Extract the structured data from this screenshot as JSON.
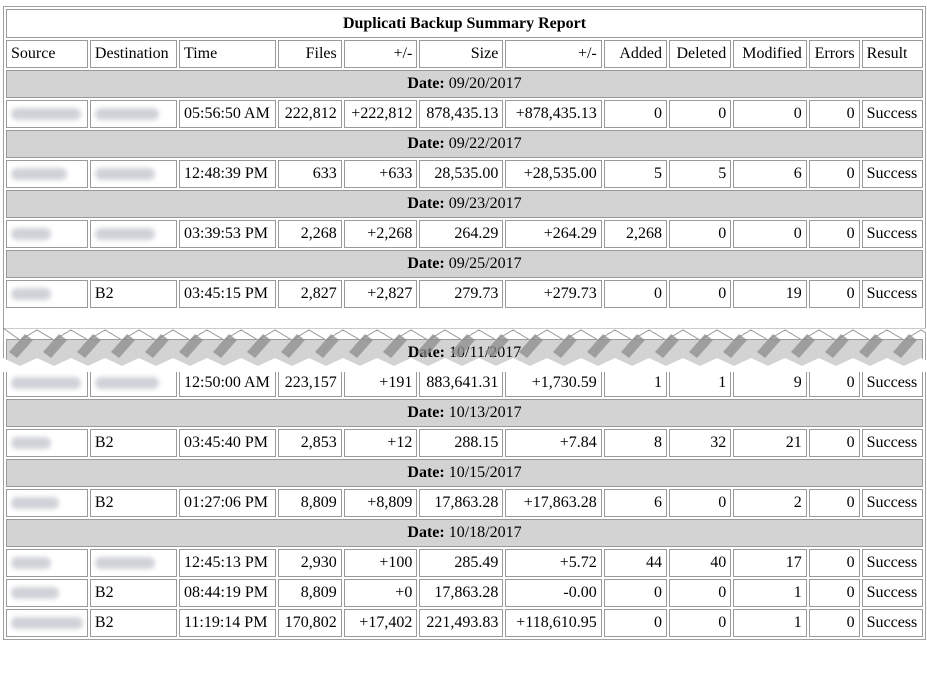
{
  "report": {
    "title": "Duplicati Backup Summary Report",
    "date_label": "Date:",
    "columns": [
      "Source",
      "Destination",
      "Time",
      "Files",
      "+/-",
      "Size",
      "+/-",
      "Added",
      "Deleted",
      "Modified",
      "Errors",
      "Result"
    ],
    "groups": [
      {
        "date": "09/20/2017",
        "rows": [
          {
            "source": "",
            "destination": "",
            "time": "05:56:50 AM",
            "files": "222,812",
            "files_delta": "+222,812",
            "size": "878,435.13",
            "size_delta": "+878,435.13",
            "added": "0",
            "deleted": "0",
            "modified": "0",
            "errors": "0",
            "result": "Success"
          }
        ]
      },
      {
        "date": "09/22/2017",
        "rows": [
          {
            "source": "",
            "destination": "",
            "time": "12:48:39 PM",
            "files": "633",
            "files_delta": "+633",
            "size": "28,535.00",
            "size_delta": "+28,535.00",
            "added": "5",
            "deleted": "5",
            "modified": "6",
            "errors": "0",
            "result": "Success"
          }
        ]
      },
      {
        "date": "09/23/2017",
        "rows": [
          {
            "source": "",
            "destination": "",
            "time": "03:39:53 PM",
            "files": "2,268",
            "files_delta": "+2,268",
            "size": "264.29",
            "size_delta": "+264.29",
            "added": "2,268",
            "deleted": "0",
            "modified": "0",
            "errors": "0",
            "result": "Success"
          }
        ]
      },
      {
        "date": "09/25/2017",
        "rows": [
          {
            "source": "",
            "destination": "B2",
            "time": "03:45:15 PM",
            "files": "2,827",
            "files_delta": "+2,827",
            "size": "279.73",
            "size_delta": "+279.73",
            "added": "0",
            "deleted": "0",
            "modified": "19",
            "errors": "0",
            "result": "Success"
          }
        ]
      },
      {
        "date": "10/11/2017",
        "rows": [
          {
            "source": "",
            "destination": "",
            "time": "12:50:00 AM",
            "files": "223,157",
            "files_delta": "+191",
            "size": "883,641.31",
            "size_delta": "+1,730.59",
            "added": "1",
            "deleted": "1",
            "modified": "9",
            "errors": "0",
            "result": "Success"
          }
        ]
      },
      {
        "date": "10/13/2017",
        "rows": [
          {
            "source": "",
            "destination": "B2",
            "time": "03:45:40 PM",
            "files": "2,853",
            "files_delta": "+12",
            "size": "288.15",
            "size_delta": "+7.84",
            "added": "8",
            "deleted": "32",
            "modified": "21",
            "errors": "0",
            "result": "Success"
          }
        ]
      },
      {
        "date": "10/15/2017",
        "rows": [
          {
            "source": "",
            "destination": "B2",
            "time": "01:27:06 PM",
            "files": "8,809",
            "files_delta": "+8,809",
            "size": "17,863.28",
            "size_delta": "+17,863.28",
            "added": "6",
            "deleted": "0",
            "modified": "2",
            "errors": "0",
            "result": "Success"
          }
        ]
      },
      {
        "date": "10/18/2017",
        "rows": [
          {
            "source": "",
            "destination": "",
            "time": "12:45:13 PM",
            "files": "2,930",
            "files_delta": "+100",
            "size": "285.49",
            "size_delta": "+5.72",
            "added": "44",
            "deleted": "40",
            "modified": "17",
            "errors": "0",
            "result": "Success"
          },
          {
            "source": "",
            "destination": "B2",
            "time": "08:44:19 PM",
            "files": "8,809",
            "files_delta": "+0",
            "size": "17,863.28",
            "size_delta": "-0.00",
            "added": "0",
            "deleted": "0",
            "modified": "1",
            "errors": "0",
            "result": "Success"
          },
          {
            "source": "",
            "destination": "B2",
            "time": "11:19:14 PM",
            "files": "170,802",
            "files_delta": "+17,402",
            "size": "221,493.83",
            "size_delta": "+118,610.95",
            "added": "0",
            "deleted": "0",
            "modified": "1",
            "errors": "0",
            "result": "Success"
          }
        ]
      }
    ]
  }
}
